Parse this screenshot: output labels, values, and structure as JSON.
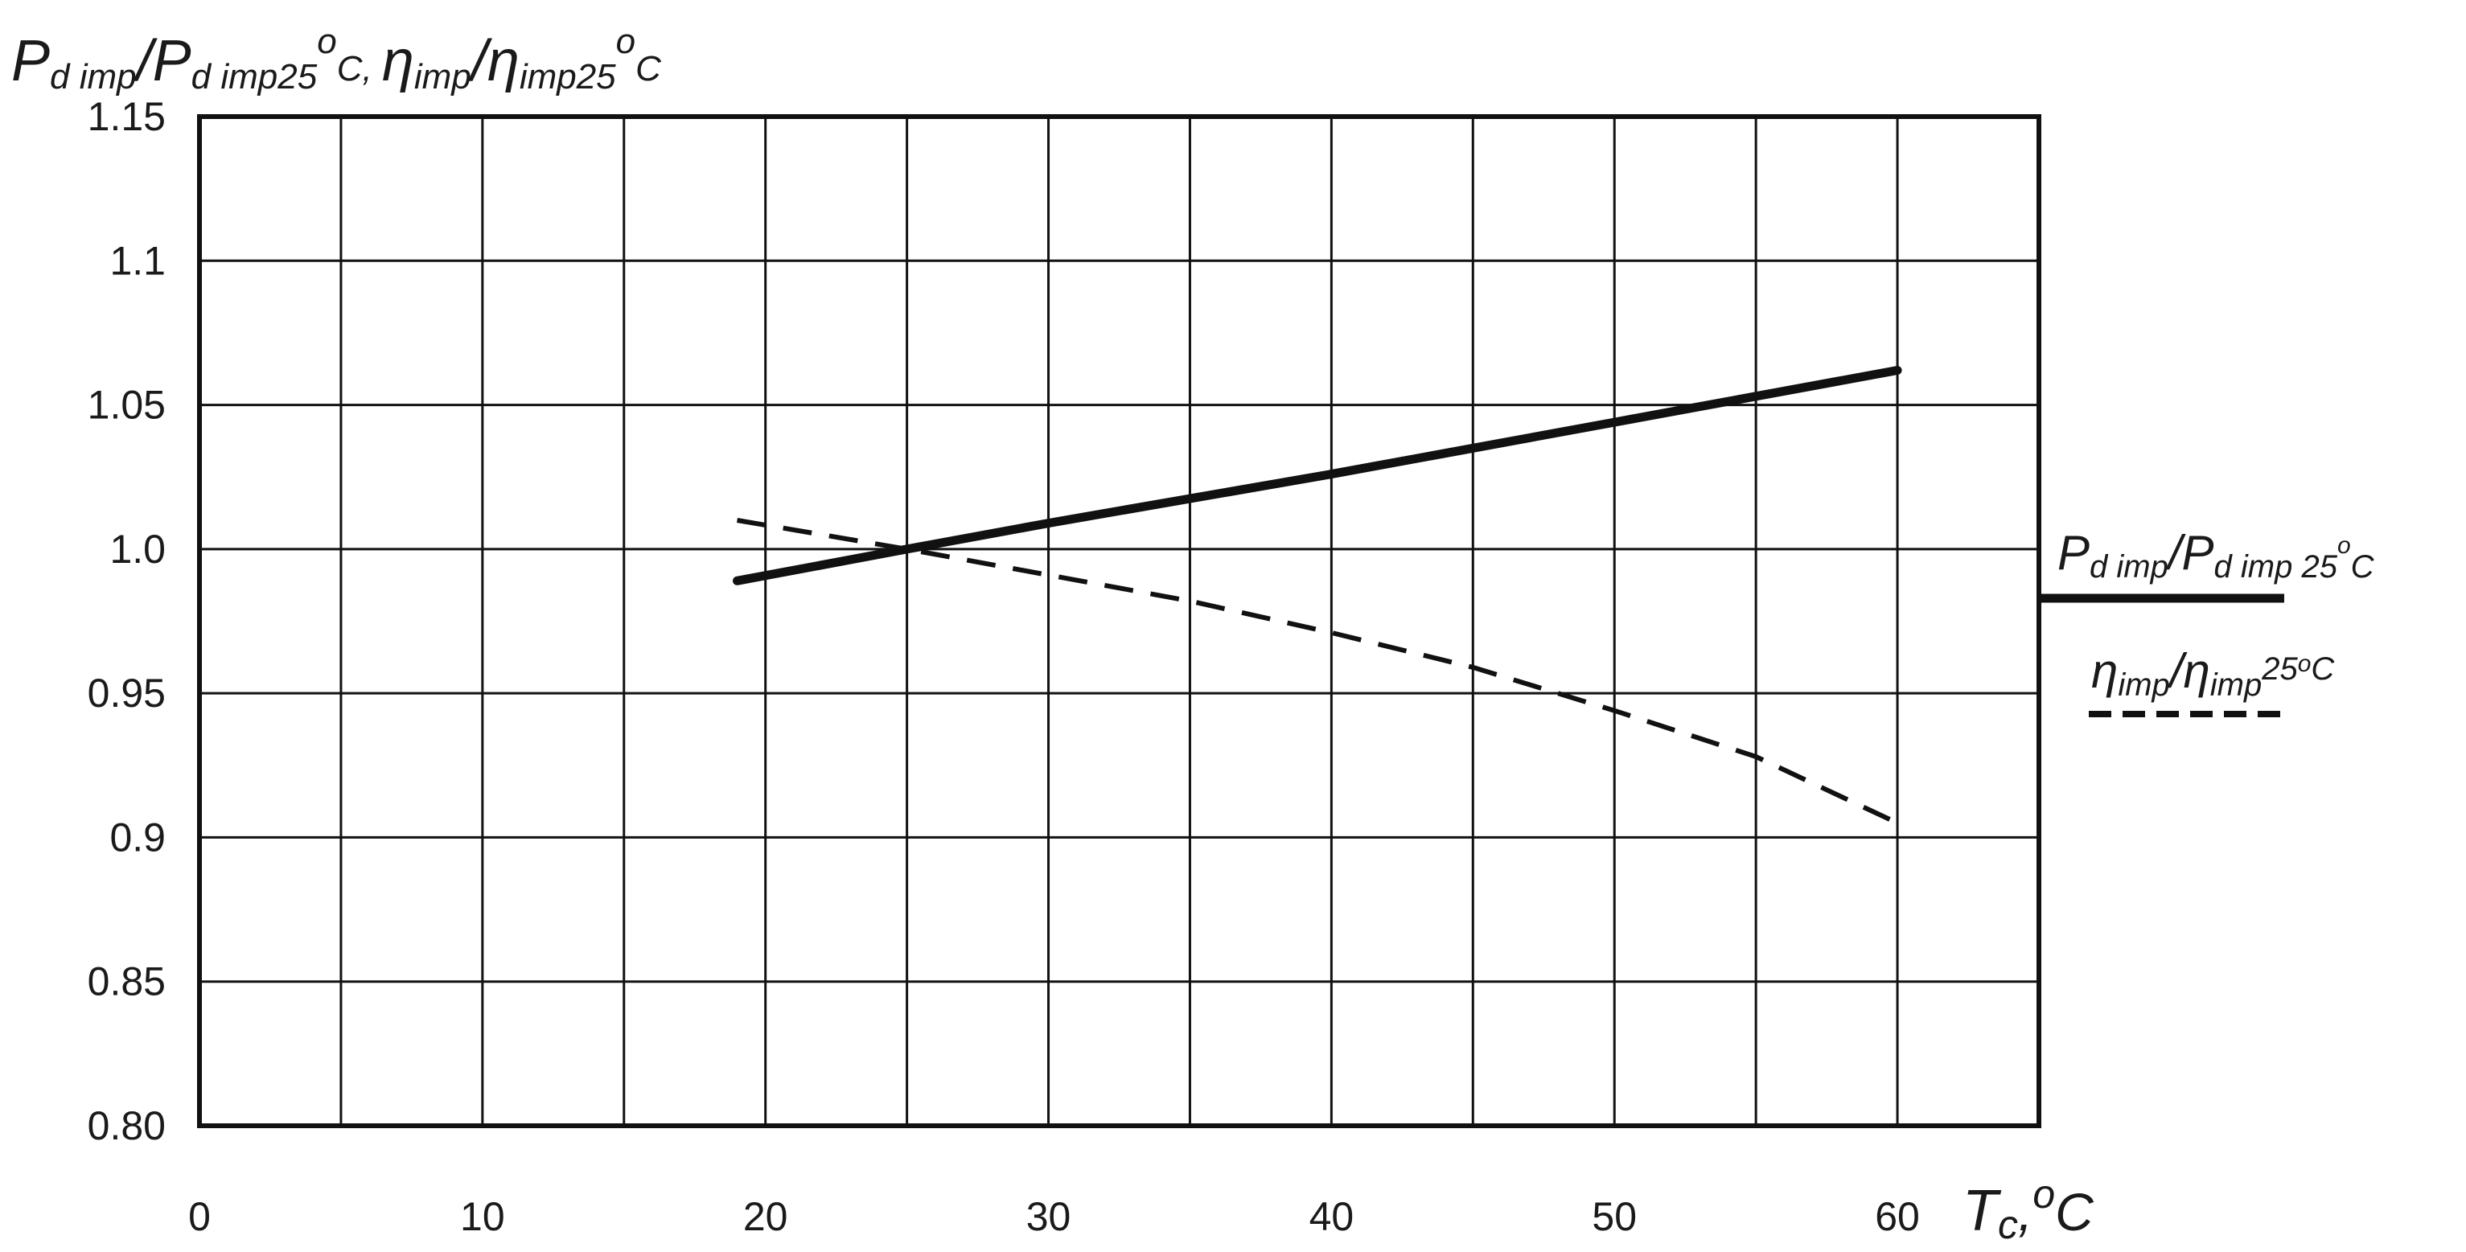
{
  "chart_data": {
    "type": "line",
    "x_ticks": [
      "0",
      "10",
      "20",
      "30",
      "40",
      "50",
      "60"
    ],
    "y_ticks": [
      "0.80",
      "0.85",
      "0.9",
      "0.95",
      "1.0",
      "1.05",
      "1.1",
      "1.15"
    ],
    "xlim": [
      0,
      65
    ],
    "ylim": [
      0.8,
      1.15
    ],
    "grid": true,
    "legend_position": "right",
    "series": [
      {
        "name": "P_d imp / P_d imp 25°C",
        "style": "solid",
        "color": "#111111",
        "x": [
          19,
          25,
          30,
          40,
          50,
          60
        ],
        "y": [
          0.989,
          1.0,
          1.009,
          1.026,
          1.044,
          1.062
        ]
      },
      {
        "name": "η_imp / η_imp 25°C",
        "style": "dashed",
        "color": "#111111",
        "x": [
          19,
          25,
          30,
          35,
          40,
          45,
          50,
          55,
          60
        ],
        "y": [
          1.01,
          1.0,
          0.991,
          0.982,
          0.971,
          0.959,
          0.944,
          0.928,
          0.905
        ]
      }
    ]
  },
  "title_y": {
    "p1": "P",
    "s1": "d imp",
    "p2": "/P",
    "s2": "d imp25",
    "sup1": "o",
    "p3": "C, ",
    "eta1": "η",
    "s3": "imp",
    "p4": "/",
    "eta2": "η",
    "s4": "imp25",
    "sup2": "o",
    "p5": "C"
  },
  "title_x": {
    "p1": "T",
    "s1": "c",
    "p2": ",",
    "sup": "o",
    "p3": "C"
  },
  "legend": {
    "solid": {
      "p1": "P",
      "s1": "d imp",
      "p2": "/P",
      "s2": "d imp 25",
      "sup": "o",
      "s3": "C"
    },
    "dashed": {
      "eta1": "η",
      "s1": "imp",
      "p2": "/",
      "eta2": "η",
      "s2": "imp",
      "s3": "25",
      "sup": "o",
      "s4": "C"
    }
  }
}
